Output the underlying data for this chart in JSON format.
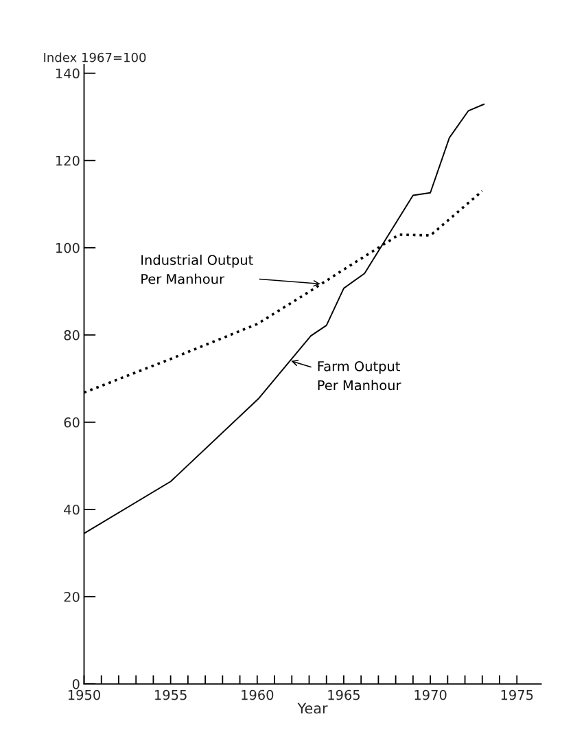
{
  "chart_data": {
    "type": "line",
    "xlabel": "Year",
    "ylabel": "Index 1967=100",
    "series": [
      {
        "name": "Farm Output\nPer Manhour",
        "color": "#000000",
        "line_style": "solid",
        "x": [
          1950,
          1955,
          1960.1,
          1963.1,
          1964,
          1965,
          1966.2,
          1969,
          1970,
          1971.1,
          1972.2,
          1973.1
        ],
        "values": [
          34.5,
          46.4,
          65.5,
          79.8,
          82.2,
          90.7,
          94.1,
          112,
          112.6,
          125.2,
          131.4,
          132.9
        ]
      },
      {
        "name": "Industrial Output\nPer Manhour",
        "color": "#000000",
        "line_style": "dotted",
        "x": [
          1950,
          1955,
          1960,
          1963,
          1965,
          1968.2,
          1970,
          1973
        ],
        "values": [
          66.8,
          74.5,
          82.5,
          89.9,
          95,
          103,
          102.8,
          113
        ]
      }
    ],
    "xlim": [
      1950,
      1976.4
    ],
    "ylim": [
      0,
      142
    ],
    "xticks": [
      1950,
      {
        "value": 1951,
        "label": null
      },
      {
        "value": 1952,
        "label": null
      },
      {
        "value": 1953,
        "label": null
      },
      {
        "value": 1954,
        "label": null
      },
      1955,
      {
        "value": 1956,
        "label": null
      },
      {
        "value": 1957,
        "label": null
      },
      {
        "value": 1958,
        "label": null
      },
      {
        "value": 1959,
        "label": null
      },
      1960,
      {
        "value": 1961,
        "label": null
      },
      {
        "value": 1962,
        "label": null
      },
      {
        "value": 1963,
        "label": null
      },
      {
        "value": 1964,
        "label": null
      },
      1965,
      {
        "value": 1966,
        "label": null
      },
      {
        "value": 1967,
        "label": null
      },
      {
        "value": 1968,
        "label": null
      },
      {
        "value": 1969,
        "label": null
      },
      1970,
      {
        "value": 1971,
        "label": null
      },
      {
        "value": 1972,
        "label": null
      },
      {
        "value": 1973,
        "label": null
      },
      {
        "value": 1974,
        "label": null
      },
      1975
    ],
    "yticks": [
      0,
      20,
      40,
      60,
      80,
      100,
      120,
      140
    ],
    "grid": false
  }
}
